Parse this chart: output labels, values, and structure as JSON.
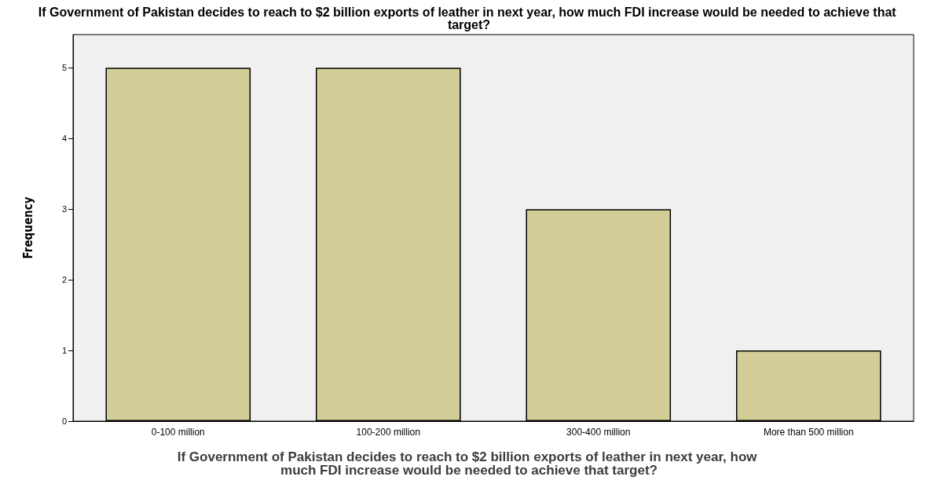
{
  "chart_data": {
    "type": "bar",
    "title": "If Government of Pakistan decides to reach to $2 billion exports of leather in next year, how much FDI increase would be needed to achieve that target?",
    "xlabel": "If Government of Pakistan decides to reach to $2 billion exports of leather in next year, how much FDI increase would be needed to achieve that target?",
    "ylabel": "Frequency",
    "categories": [
      "0-100 million",
      "100-200 million",
      "300-400 million",
      "More than 500 million"
    ],
    "values": [
      5,
      5,
      3,
      1
    ],
    "color": "#d3ce97",
    "ylim": [
      0,
      5.47
    ],
    "yticks": [
      0,
      1,
      2,
      3,
      4,
      5
    ],
    "grid": false
  }
}
